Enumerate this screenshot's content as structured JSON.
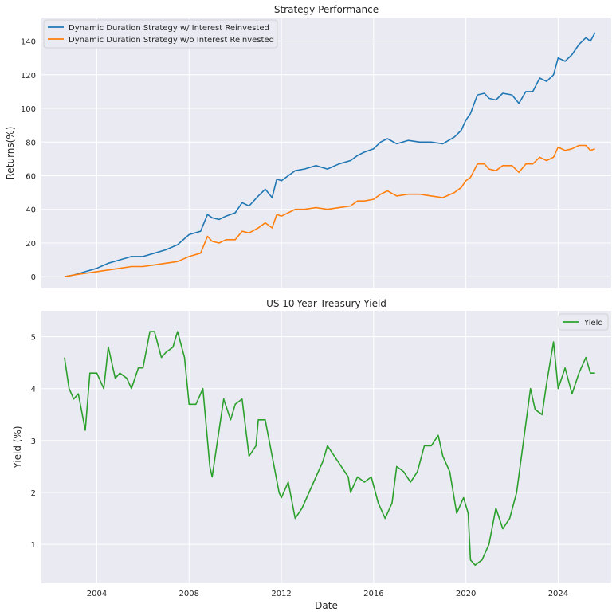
{
  "chart_data": [
    {
      "type": "line",
      "title": "Strategy Performance",
      "xlabel": "",
      "ylabel": "Returns(%)",
      "xlim": [
        2001.6,
        2026.3
      ],
      "ylim": [
        -7,
        154
      ],
      "x_ticks": [
        2004,
        2008,
        2012,
        2016,
        2020,
        2024
      ],
      "x_tick_labels": [
        "",
        "",
        "",
        "",
        "",
        ""
      ],
      "y_ticks": [
        0,
        20,
        40,
        60,
        80,
        100,
        120,
        140
      ],
      "y_tick_labels": [
        "0",
        "20",
        "40",
        "60",
        "80",
        "100",
        "120",
        "140"
      ],
      "legend_position": "top-left",
      "series": [
        {
          "name": "Dynamic Duration Strategy w/ Interest Reinvested",
          "color": "#1f77b4",
          "x": [
            2002.6,
            2003.0,
            2003.5,
            2004.0,
            2004.5,
            2005.0,
            2005.5,
            2006.0,
            2006.5,
            2007.0,
            2007.5,
            2008.0,
            2008.5,
            2008.8,
            2009.0,
            2009.3,
            2009.6,
            2010.0,
            2010.3,
            2010.6,
            2011.0,
            2011.3,
            2011.6,
            2011.8,
            2012.0,
            2012.3,
            2012.6,
            2013.0,
            2013.5,
            2014.0,
            2014.5,
            2015.0,
            2015.3,
            2015.6,
            2016.0,
            2016.3,
            2016.6,
            2017.0,
            2017.5,
            2018.0,
            2018.5,
            2019.0,
            2019.5,
            2019.8,
            2020.0,
            2020.2,
            2020.5,
            2020.8,
            2021.0,
            2021.3,
            2021.6,
            2022.0,
            2022.3,
            2022.6,
            2022.9,
            2023.2,
            2023.5,
            2023.8,
            2024.0,
            2024.3,
            2024.6,
            2024.9,
            2025.2,
            2025.4,
            2025.6
          ],
          "values": [
            0,
            1,
            3,
            5,
            8,
            10,
            12,
            12,
            14,
            16,
            19,
            25,
            27,
            37,
            35,
            34,
            36,
            38,
            44,
            42,
            48,
            52,
            47,
            58,
            57,
            60,
            63,
            64,
            66,
            64,
            67,
            69,
            72,
            74,
            76,
            80,
            82,
            79,
            81,
            80,
            80,
            79,
            83,
            87,
            93,
            97,
            108,
            109,
            106,
            105,
            109,
            108,
            103,
            110,
            110,
            118,
            116,
            120,
            130,
            128,
            132,
            138,
            142,
            140,
            145
          ]
        },
        {
          "name": "Dynamic Duration Strategy w/o Interest Reinvested",
          "color": "#ff7f0e",
          "x": [
            2002.6,
            2003.0,
            2003.5,
            2004.0,
            2004.5,
            2005.0,
            2005.5,
            2006.0,
            2006.5,
            2007.0,
            2007.5,
            2008.0,
            2008.5,
            2008.8,
            2009.0,
            2009.3,
            2009.6,
            2010.0,
            2010.3,
            2010.6,
            2011.0,
            2011.3,
            2011.6,
            2011.8,
            2012.0,
            2012.3,
            2012.6,
            2013.0,
            2013.5,
            2014.0,
            2014.5,
            2015.0,
            2015.3,
            2015.6,
            2016.0,
            2016.3,
            2016.6,
            2017.0,
            2017.5,
            2018.0,
            2018.5,
            2019.0,
            2019.5,
            2019.8,
            2020.0,
            2020.2,
            2020.5,
            2020.8,
            2021.0,
            2021.3,
            2021.6,
            2022.0,
            2022.3,
            2022.6,
            2022.9,
            2023.2,
            2023.5,
            2023.8,
            2024.0,
            2024.3,
            2024.6,
            2024.9,
            2025.2,
            2025.4,
            2025.6
          ],
          "values": [
            0,
            1,
            2,
            3,
            4,
            5,
            6,
            6,
            7,
            8,
            9,
            12,
            14,
            24,
            21,
            20,
            22,
            22,
            27,
            26,
            29,
            32,
            29,
            37,
            36,
            38,
            40,
            40,
            41,
            40,
            41,
            42,
            45,
            45,
            46,
            49,
            51,
            48,
            49,
            49,
            48,
            47,
            50,
            53,
            57,
            59,
            67,
            67,
            64,
            63,
            66,
            66,
            62,
            67,
            67,
            71,
            69,
            71,
            77,
            75,
            76,
            78,
            78,
            75,
            76
          ]
        }
      ]
    },
    {
      "type": "line",
      "title": "US 10-Year Treasury Yield",
      "xlabel": "Date",
      "ylabel": "Yield (%)",
      "xlim": [
        2001.6,
        2026.3
      ],
      "ylim": [
        0.25,
        5.5
      ],
      "x_ticks": [
        2004,
        2008,
        2012,
        2016,
        2020,
        2024
      ],
      "x_tick_labels": [
        "2004",
        "2008",
        "2012",
        "2016",
        "2020",
        "2024"
      ],
      "y_ticks": [
        1,
        2,
        3,
        4,
        5
      ],
      "y_tick_labels": [
        "1",
        "2",
        "3",
        "4",
        "5"
      ],
      "legend_position": "top-right",
      "series": [
        {
          "name": "Yield",
          "color": "#2ca02c",
          "x": [
            2002.6,
            2002.8,
            2003.0,
            2003.2,
            2003.5,
            2003.7,
            2004.0,
            2004.3,
            2004.5,
            2004.8,
            2005.0,
            2005.3,
            2005.5,
            2005.8,
            2006.0,
            2006.3,
            2006.5,
            2006.8,
            2007.0,
            2007.3,
            2007.5,
            2007.8,
            2008.0,
            2008.3,
            2008.6,
            2008.9,
            2009.0,
            2009.3,
            2009.5,
            2009.8,
            2010.0,
            2010.3,
            2010.6,
            2010.9,
            2011.0,
            2011.3,
            2011.6,
            2011.9,
            2012.0,
            2012.3,
            2012.6,
            2012.9,
            2013.2,
            2013.5,
            2013.8,
            2014.0,
            2014.3,
            2014.6,
            2014.9,
            2015.0,
            2015.3,
            2015.6,
            2015.9,
            2016.2,
            2016.5,
            2016.8,
            2017.0,
            2017.3,
            2017.6,
            2017.9,
            2018.2,
            2018.5,
            2018.8,
            2019.0,
            2019.3,
            2019.6,
            2019.9,
            2020.1,
            2020.2,
            2020.4,
            2020.7,
            2021.0,
            2021.3,
            2021.6,
            2021.9,
            2022.2,
            2022.5,
            2022.8,
            2023.0,
            2023.3,
            2023.5,
            2023.8,
            2024.0,
            2024.3,
            2024.6,
            2024.9,
            2025.2,
            2025.4,
            2025.6
          ],
          "values": [
            4.6,
            4.0,
            3.8,
            3.9,
            3.2,
            4.3,
            4.3,
            4.0,
            4.8,
            4.2,
            4.3,
            4.2,
            4.0,
            4.4,
            4.4,
            5.1,
            5.1,
            4.6,
            4.7,
            4.8,
            5.1,
            4.6,
            3.7,
            3.7,
            4.0,
            2.5,
            2.3,
            3.2,
            3.8,
            3.4,
            3.7,
            3.8,
            2.7,
            2.9,
            3.4,
            3.4,
            2.7,
            2.0,
            1.9,
            2.2,
            1.5,
            1.7,
            2.0,
            2.3,
            2.6,
            2.9,
            2.7,
            2.5,
            2.3,
            2.0,
            2.3,
            2.2,
            2.3,
            1.8,
            1.5,
            1.8,
            2.5,
            2.4,
            2.2,
            2.4,
            2.9,
            2.9,
            3.1,
            2.7,
            2.4,
            1.6,
            1.9,
            1.6,
            0.7,
            0.6,
            0.7,
            1.0,
            1.7,
            1.3,
            1.5,
            2.0,
            3.0,
            4.0,
            3.6,
            3.5,
            4.1,
            4.9,
            4.0,
            4.4,
            3.9,
            4.3,
            4.6,
            4.3,
            4.3
          ]
        }
      ]
    }
  ]
}
